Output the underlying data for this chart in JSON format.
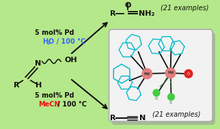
{
  "bg_color": "#b5e88a",
  "water_color": "#3366ff",
  "mecn_color": "#ee1111",
  "text_color": "#111111",
  "card_facecolor": "#f2f2f2",
  "card_edgecolor": "#aaaaaa",
  "card_shadow": "#999999",
  "pd_color": "#e08080",
  "cl_color": "#44cc44",
  "o_color": "#dd2222",
  "bond_color": "#111111",
  "ring_color": "#00bbcc",
  "dashed_color": "#448844",
  "arrow_color": "#111111",
  "rxn1_line1": "5 mol% Pd",
  "rxn1_line2_h": "H",
  "rxn1_line2_sub": "2",
  "rxn1_line2_rest": "O / 100 °C",
  "rxn2_line1": "5 mol% Pd",
  "rxn2_mecn": "MeCN",
  "rxn2_rest": " / 100 °C",
  "examples": "(21 examples)"
}
